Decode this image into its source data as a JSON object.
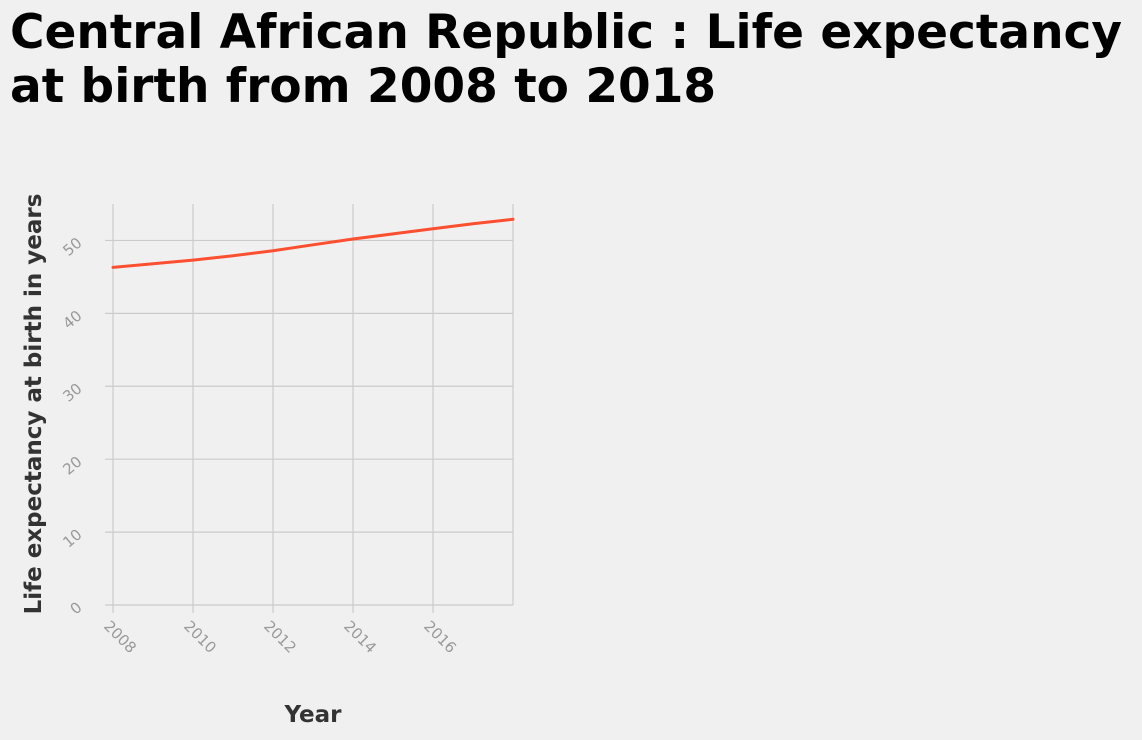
{
  "chart_data": {
    "type": "line",
    "title": "Central African Republic : Life expectancy at birth from 2008 to 2018",
    "xlabel": "Year",
    "ylabel": "Life expectancy at birth in years",
    "xlim": [
      2008,
      2018
    ],
    "ylim": [
      0,
      55
    ],
    "xticks": [
      2008,
      2010,
      2012,
      2014,
      2016
    ],
    "yticks": [
      0,
      10,
      20,
      30,
      40,
      50
    ],
    "grid": true,
    "series": [
      {
        "color": "#fc4f30",
        "x": [
          2008,
          2009,
          2010,
          2011,
          2012,
          2013,
          2014,
          2015,
          2016,
          2017,
          2018
        ],
        "y": [
          46.3,
          46.8,
          47.3,
          47.9,
          48.6,
          49.4,
          50.2,
          50.9,
          51.6,
          52.3,
          52.9
        ]
      }
    ]
  }
}
